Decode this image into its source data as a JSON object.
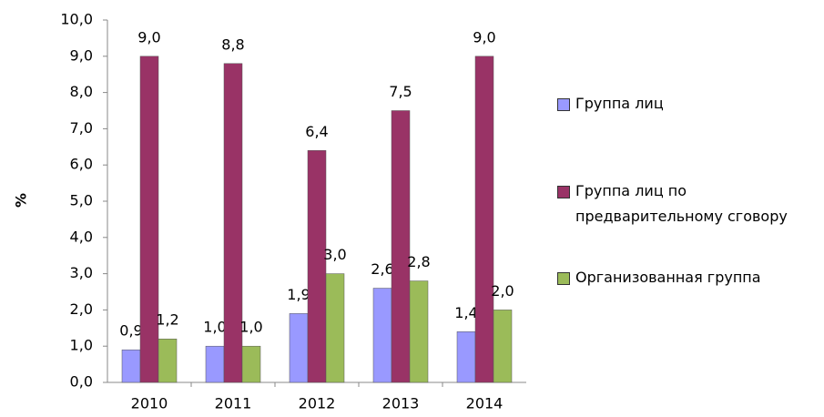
{
  "chart_data": {
    "type": "bar",
    "y_label": "%",
    "categories": [
      "2010",
      "2011",
      "2012",
      "2013",
      "2014"
    ],
    "series": [
      {
        "name": "Группа лиц",
        "color": "#9999ff",
        "values": [
          0.9,
          1.0,
          1.9,
          2.6,
          1.4
        ],
        "value_labels": [
          "0,9",
          "1,0",
          "1,9",
          "2,6",
          "1,4"
        ]
      },
      {
        "name": "Группа лиц по предварительному сговору",
        "color": "#993366",
        "values": [
          9.0,
          8.8,
          6.4,
          7.5,
          9.0
        ],
        "value_labels": [
          "9,0",
          "8,8",
          "6,4",
          "7,5",
          "9,0"
        ]
      },
      {
        "name": "Организованная группа",
        "color": "#9bbb59",
        "values": [
          1.2,
          1.0,
          3.0,
          2.8,
          2.0
        ],
        "value_labels": [
          "1,2",
          "1,0",
          "3,0",
          "2,8",
          "2,0"
        ]
      }
    ],
    "ylim": [
      0,
      10
    ],
    "yticks": [
      {
        "value": 0,
        "label": "0,0"
      },
      {
        "value": 1,
        "label": "1,0"
      },
      {
        "value": 2,
        "label": "2,0"
      },
      {
        "value": 3,
        "label": "3,0"
      },
      {
        "value": 4,
        "label": "4,0"
      },
      {
        "value": 5,
        "label": "5,0"
      },
      {
        "value": 6,
        "label": "6,0"
      },
      {
        "value": 7,
        "label": "7,0"
      },
      {
        "value": 8,
        "label": "8,0"
      },
      {
        "value": 9,
        "label": "9,0"
      },
      {
        "value": 10,
        "label": "10,0"
      }
    ],
    "legend": "right"
  }
}
